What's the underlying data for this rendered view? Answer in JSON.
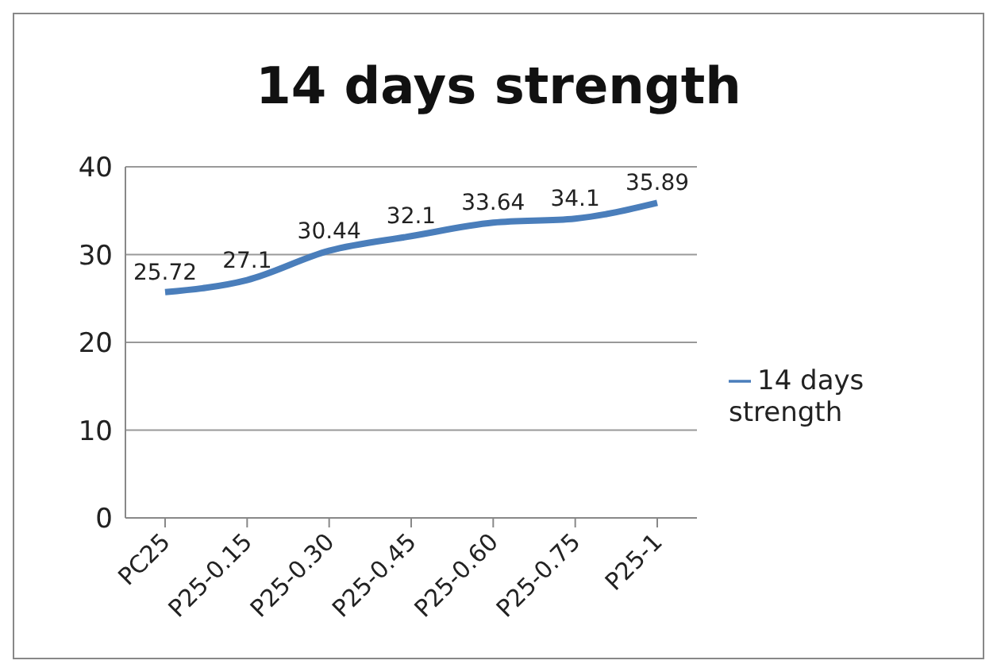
{
  "chart_data": {
    "type": "line",
    "title": "14 days strength",
    "categories": [
      "PC25",
      "P25-0.15",
      "P25-0.30",
      "P25-0.45",
      "P25-0.60",
      "P25-0.75",
      "P25-1"
    ],
    "series": [
      {
        "name": "14 days strength",
        "color": "#4a7ebb",
        "values": [
          25.72,
          27.1,
          30.44,
          32.1,
          33.64,
          34.1,
          35.89
        ]
      }
    ],
    "ylim": [
      0,
      40
    ],
    "yticks": [
      0,
      10,
      20,
      30,
      40
    ],
    "grid": "y",
    "legend": "right",
    "marker": "none",
    "data_labels": true
  }
}
